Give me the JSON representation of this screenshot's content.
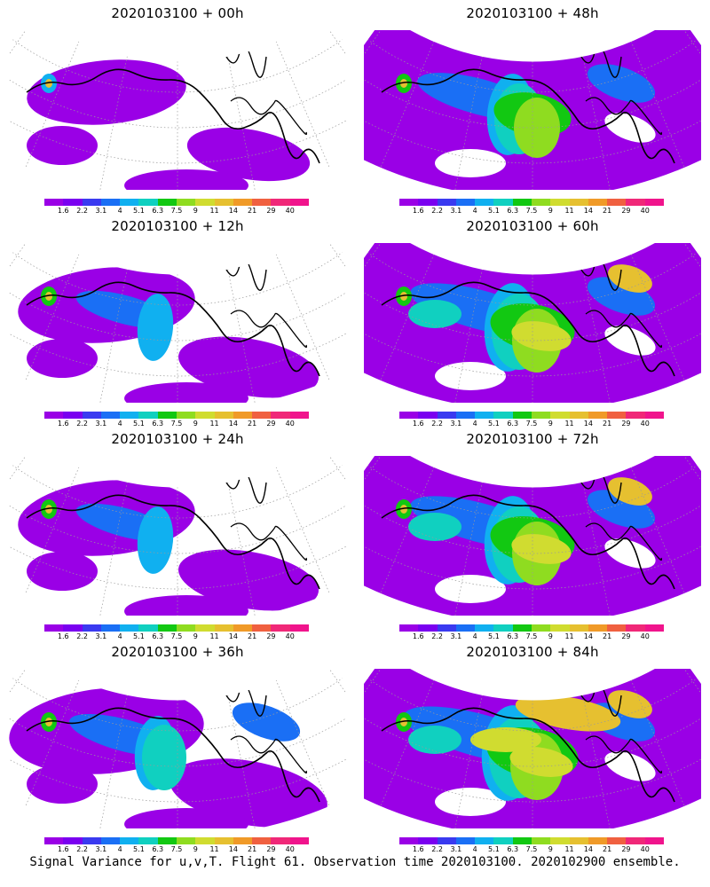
{
  "panels": [
    {
      "title": "2020103100  +  00h",
      "level": 1
    },
    {
      "title": "2020103100  +  48h",
      "level": 4
    },
    {
      "title": "2020103100  +  12h",
      "level": 2
    },
    {
      "title": "2020103100  +  60h",
      "level": 5
    },
    {
      "title": "2020103100  +  24h",
      "level": 2
    },
    {
      "title": "2020103100  +  72h",
      "level": 5
    },
    {
      "title": "2020103100  +  36h",
      "level": 3
    },
    {
      "title": "2020103100  +  84h",
      "level": 6
    }
  ],
  "colorbar": {
    "labels": [
      "1.6",
      "2.2",
      "3.1",
      "4",
      "5.1",
      "6.3",
      "7.5",
      "9",
      "11",
      "14",
      "21",
      "29",
      "40"
    ],
    "colors": [
      "#9a00e6",
      "#7a00f0",
      "#3a3af0",
      "#1a6ff5",
      "#10b0f0",
      "#10d0c0",
      "#12c812",
      "#8fdc20",
      "#d0dc30",
      "#e6c030",
      "#f09a28",
      "#f06040",
      "#f02878",
      "#f0148c"
    ]
  },
  "caption": "Signal Variance for u,v,T. Flight 61. Observation time 2020103100. 2020102900 ensemble."
}
